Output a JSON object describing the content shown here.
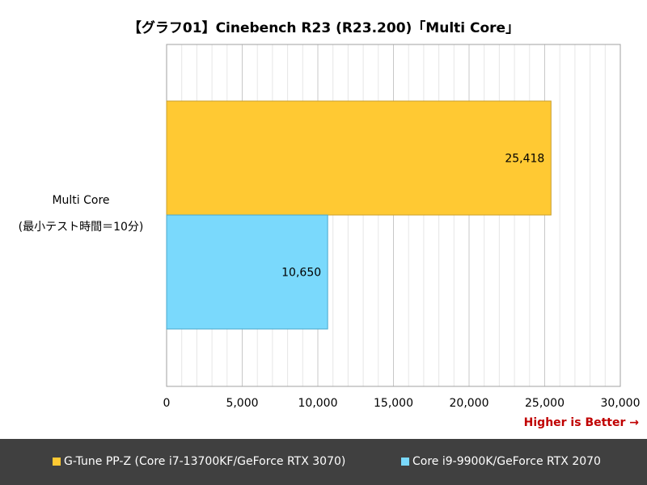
{
  "title": "【グラフ01】Cinebench R23 (R23.200)「Multi Core」",
  "category_label_line1": "Multi Core",
  "category_label_line2": "(最小テスト時間＝10分)",
  "note": "Higher is Better →",
  "colors": {
    "series1": "#ffc933",
    "series2": "#7ad9fc",
    "legend_bg": "#404040",
    "note": "#c00000"
  },
  "chart_data": {
    "type": "bar",
    "orientation": "horizontal",
    "categories": [
      "Multi Core (最小テスト時間＝10分)"
    ],
    "series": [
      {
        "name": "G-Tune PP-Z (Core i7-13700KF/GeForce RTX 3070)",
        "values": [
          25418
        ],
        "value_label": "25,418"
      },
      {
        "name": "Core i9-9900K/GeForce RTX 2070",
        "values": [
          10650
        ],
        "value_label": "10,650"
      }
    ],
    "xlim": [
      0,
      30000
    ],
    "xticks": [
      0,
      5000,
      10000,
      15000,
      20000,
      25000,
      30000
    ],
    "xtick_labels": [
      "0",
      "5,000",
      "10,000",
      "15,000",
      "20,000",
      "25,000",
      "30,000"
    ],
    "grid": true,
    "legend": "bottom"
  }
}
